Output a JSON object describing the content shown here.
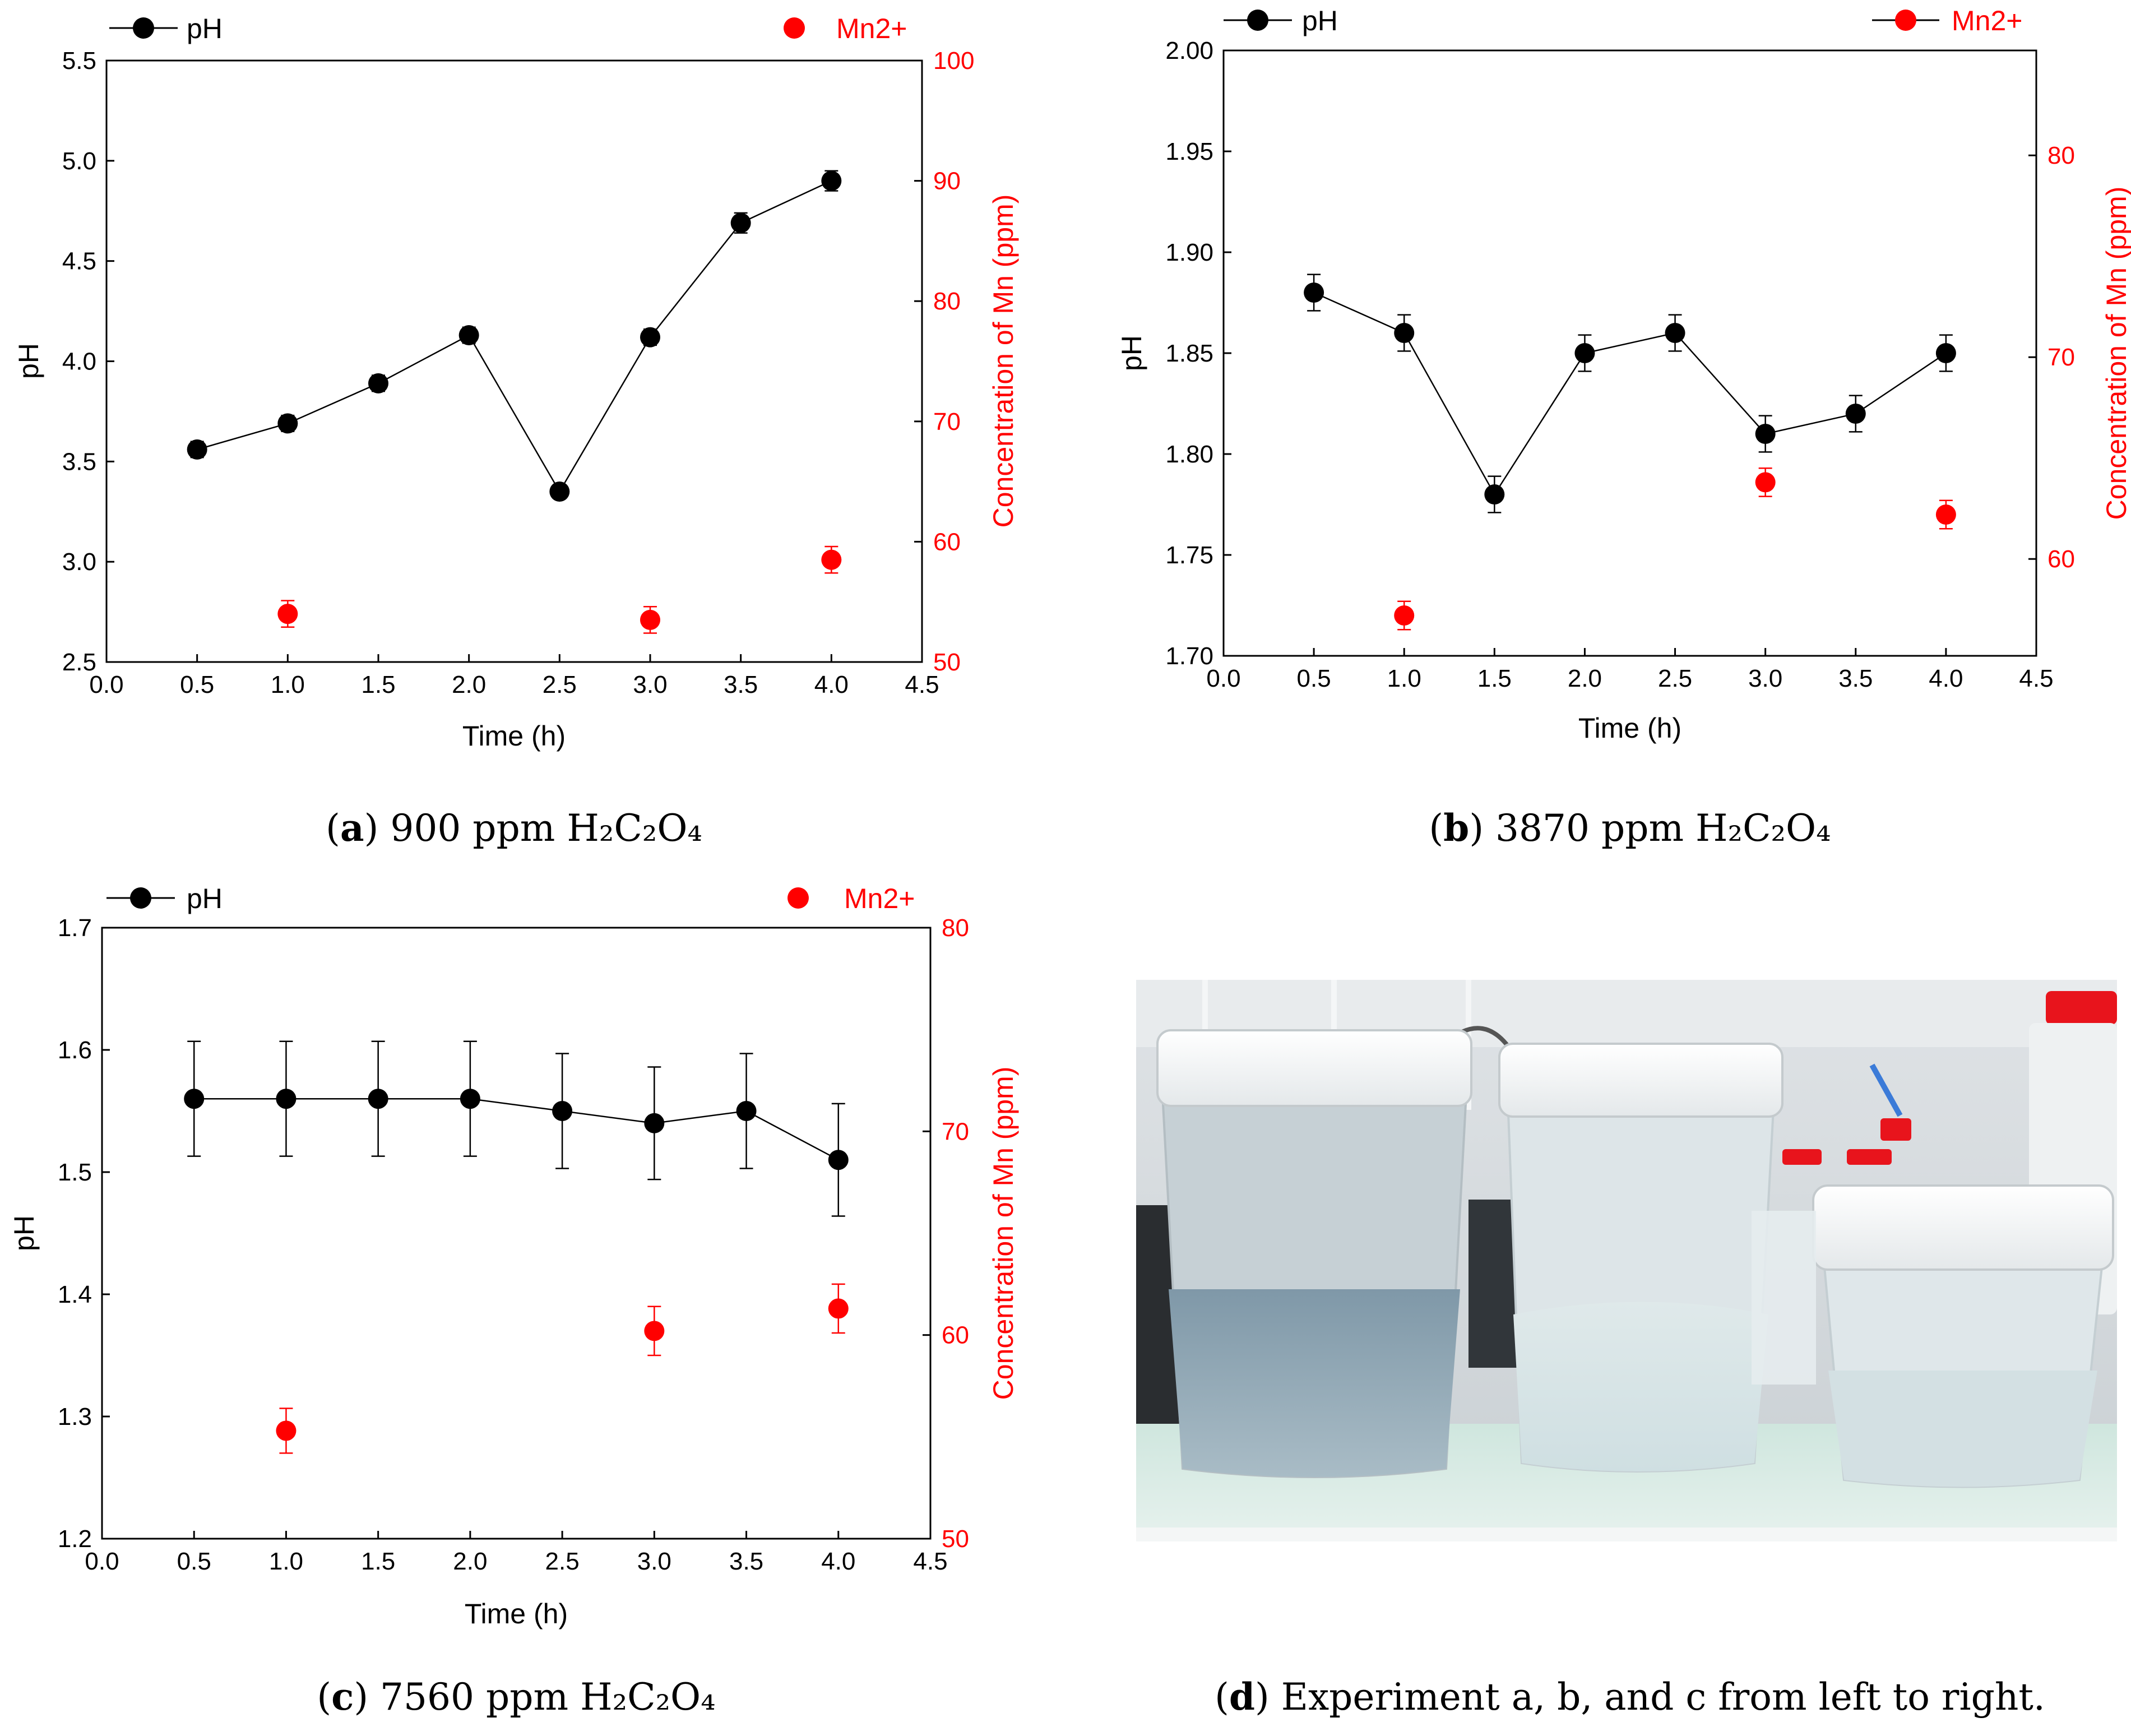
{
  "colors": {
    "ph": "#000000",
    "mn": "#ff0000",
    "axis": "#000000"
  },
  "chart_data": [
    {
      "type": "scatter",
      "panel": "a",
      "caption_letter": "a",
      "caption_rest": " 900 ppm H₂C₂O₄",
      "xlabel": "Time (h)",
      "ylabel": "pH",
      "y2label": "Concentration of Mn (ppm)",
      "xlim": [
        0,
        4.5
      ],
      "ylim": [
        2.5,
        5.5
      ],
      "y2lim": [
        50,
        100
      ],
      "xticks": [
        "0.0",
        "0.5",
        "1.0",
        "1.5",
        "2.0",
        "2.5",
        "3.0",
        "3.5",
        "4.0",
        "4.5"
      ],
      "yticks": [
        "2.5",
        "3.0",
        "3.5",
        "4.0",
        "4.5",
        "5.0",
        "5.5"
      ],
      "y2ticks": [
        "50",
        "60",
        "70",
        "80",
        "90",
        "100"
      ],
      "legend": {
        "ph": "pH",
        "mn": "Mn2+"
      },
      "series": [
        {
          "name": "pH",
          "axis": "left",
          "connected": true,
          "x": [
            0.5,
            1.0,
            1.5,
            2.0,
            2.5,
            3.0,
            3.5,
            4.0
          ],
          "y": [
            3.56,
            3.69,
            3.89,
            4.13,
            3.35,
            4.12,
            4.69,
            4.9
          ],
          "err": [
            0.04,
            0.04,
            0.04,
            0.04,
            0.03,
            0.04,
            0.05,
            0.05
          ]
        },
        {
          "name": "Mn2+",
          "axis": "right",
          "connected": false,
          "x": [
            1.0,
            3.0,
            4.0
          ],
          "y": [
            54.0,
            53.5,
            58.5
          ],
          "err": [
            1.1,
            1.1,
            1.1
          ]
        }
      ]
    },
    {
      "type": "scatter",
      "panel": "b",
      "caption_letter": "b",
      "caption_rest": " 3870 ppm H₂C₂O₄",
      "xlabel": "Time (h)",
      "ylabel": "pH",
      "y2label": "Concentration of Mn (ppm)",
      "xlim": [
        0,
        4.5
      ],
      "ylim": [
        1.7,
        2.0
      ],
      "y2lim": [
        55.2,
        85.2
      ],
      "xticks": [
        "0.0",
        "0.5",
        "1.0",
        "1.5",
        "2.0",
        "2.5",
        "3.0",
        "3.5",
        "4.0",
        "4.5"
      ],
      "yticks": [
        "1.70",
        "1.75",
        "1.80",
        "1.85",
        "1.90",
        "1.95",
        "2.00"
      ],
      "y2ticks": [
        "60",
        "70",
        "80"
      ],
      "legend": {
        "ph": "pH",
        "mn": "Mn2+"
      },
      "series": [
        {
          "name": "pH",
          "axis": "left",
          "connected": true,
          "x": [
            0.5,
            1.0,
            1.5,
            2.0,
            2.5,
            3.0,
            3.5,
            4.0
          ],
          "y": [
            1.88,
            1.86,
            1.78,
            1.85,
            1.86,
            1.81,
            1.82,
            1.85
          ],
          "err": [
            0.009,
            0.009,
            0.009,
            0.009,
            0.009,
            0.009,
            0.009,
            0.009
          ]
        },
        {
          "name": "Mn2+",
          "axis": "right",
          "connected": false,
          "x": [
            1.0,
            3.0,
            4.0
          ],
          "y": [
            57.2,
            63.8,
            62.2
          ],
          "err": [
            0.7,
            0.7,
            0.7
          ]
        }
      ]
    },
    {
      "type": "scatter",
      "panel": "c",
      "caption_letter": "c",
      "caption_rest": " 7560 ppm H₂C₂O₄",
      "xlabel": "Time (h)",
      "ylabel": "pH",
      "y2label": "Concentration of Mn (ppm)",
      "xlim": [
        0,
        4.5
      ],
      "ylim": [
        1.2,
        1.7
      ],
      "y2lim": [
        50,
        80
      ],
      "xticks": [
        "0.0",
        "0.5",
        "1.0",
        "1.5",
        "2.0",
        "2.5",
        "3.0",
        "3.5",
        "4.0",
        "4.5"
      ],
      "yticks": [
        "1.2",
        "1.3",
        "1.4",
        "1.5",
        "1.6",
        "1.7"
      ],
      "y2ticks": [
        "50",
        "60",
        "70",
        "80"
      ],
      "legend": {
        "ph": "pH",
        "mn": "Mn2+"
      },
      "series": [
        {
          "name": "pH",
          "axis": "left",
          "connected": true,
          "x": [
            0.5,
            1.0,
            1.5,
            2.0,
            2.5,
            3.0,
            3.5,
            4.0
          ],
          "y": [
            1.56,
            1.56,
            1.56,
            1.56,
            1.55,
            1.54,
            1.55,
            1.51
          ],
          "err": [
            0.047,
            0.047,
            0.047,
            0.047,
            0.047,
            0.046,
            0.047,
            0.046
          ]
        },
        {
          "name": "Mn2+",
          "axis": "right",
          "connected": false,
          "x": [
            1.0,
            3.0,
            4.0
          ],
          "y": [
            55.3,
            60.2,
            61.3
          ],
          "err": [
            1.1,
            1.2,
            1.2
          ]
        }
      ]
    }
  ],
  "photo": {
    "caption_letter": "d",
    "caption_rest": " Experiment a, b, and c from left to right."
  }
}
